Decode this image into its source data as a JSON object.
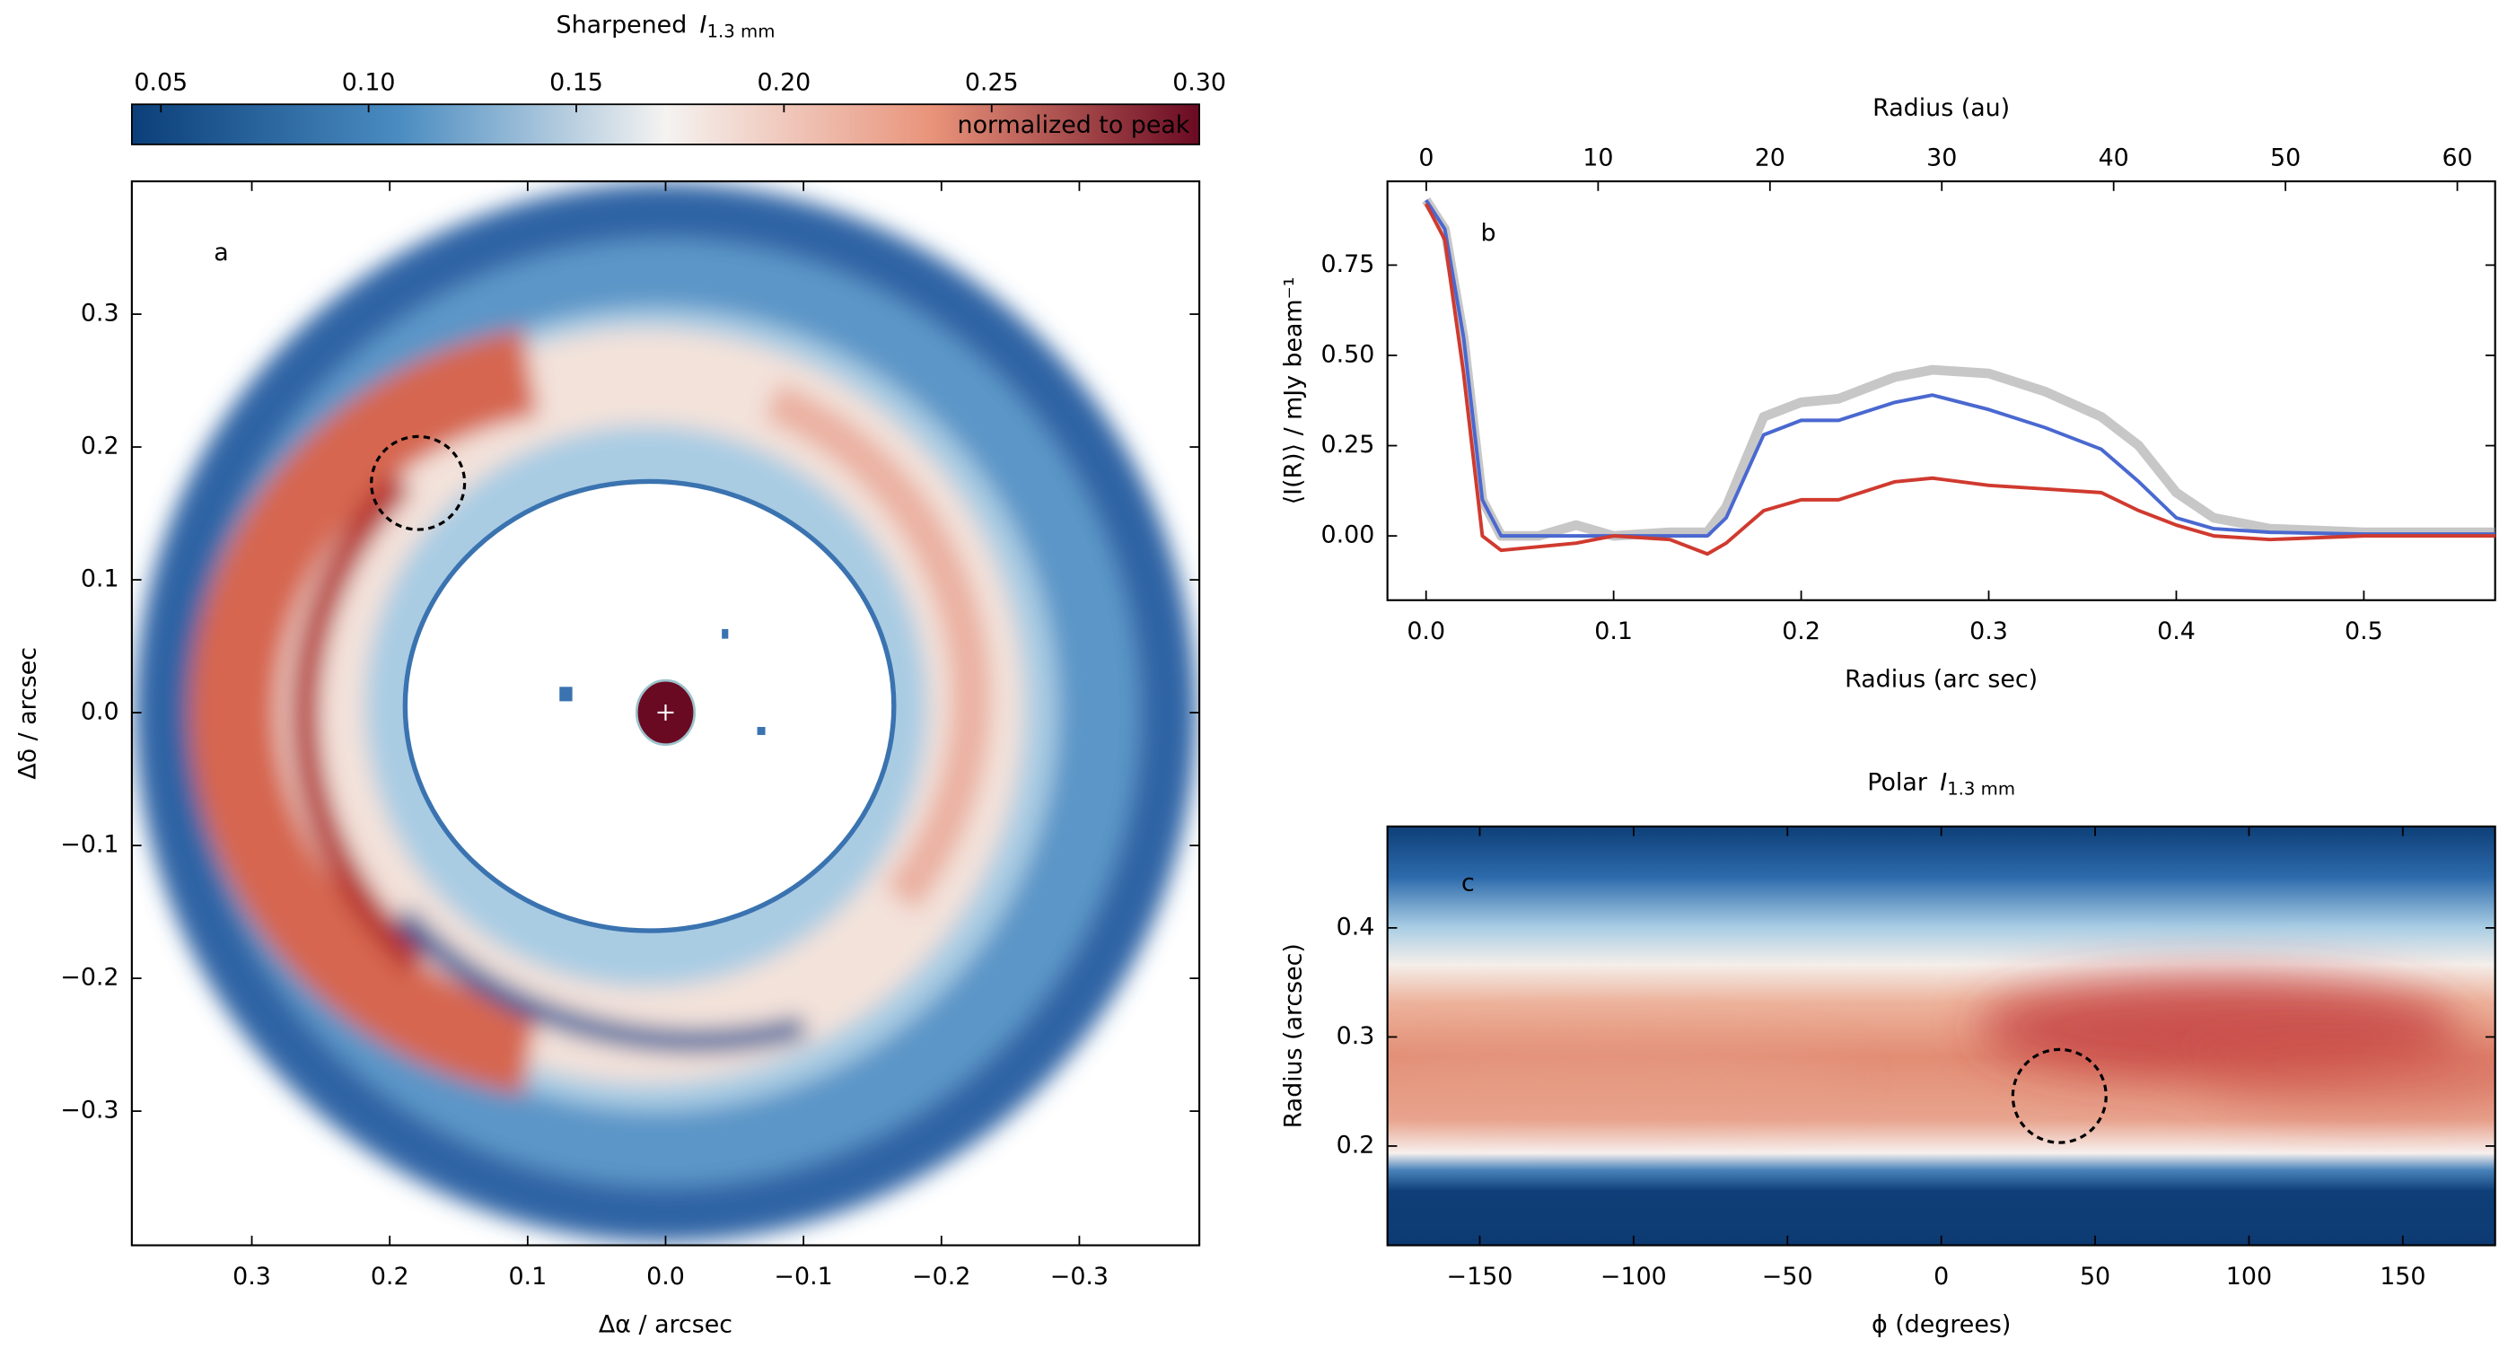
{
  "chart_data": [
    {
      "type": "heatmap",
      "title": "Sharpened",
      "title_symbol": "I",
      "title_subscript": "1.3 mm",
      "annotation": "a",
      "xlabel": "Δα / arcsec",
      "ylabel": "Δδ / arcsec",
      "xlim": [
        0.387,
        -0.387
      ],
      "xticks": [
        0.3,
        0.2,
        0.1,
        {
          "value": 0,
          "label": "0.0"
        },
        {
          "value": -0.1,
          "label": "−0.1"
        },
        {
          "value": -0.2,
          "label": "−0.2"
        },
        {
          "value": -0.3,
          "label": "−0.3"
        }
      ],
      "ylim": [
        -0.401,
        0.4
      ],
      "yticks": [
        {
          "value": -0.3,
          "label": "−0.3"
        },
        {
          "value": -0.2,
          "label": "−0.2"
        },
        {
          "value": -0.1,
          "label": "−0.1"
        },
        {
          "value": 0,
          "label": "0.0"
        },
        0.1,
        0.2,
        0.3
      ],
      "colorbar": {
        "lim": [
          0.043,
          0.3
        ],
        "ticks": [
          0.05,
          {
            "value": 0.1,
            "label": "0.10"
          },
          0.15,
          {
            "value": 0.2,
            "label": "0.20"
          },
          0.25,
          {
            "value": 0.3,
            "label": "0.30"
          }
        ],
        "note": "normalized to peak",
        "colors": [
          "#0b3f7a",
          "#4a8cc1",
          "#f5f3f1",
          "#e9937a",
          "#6a0a22"
        ]
      }
    },
    {
      "type": "line",
      "annotation": "b",
      "xlabel": "Radius (arc sec)",
      "x2label": "Radius (au)",
      "ylabel": "⟨I(R)⟩ / mJy beam⁻¹",
      "x": [
        0,
        0.01,
        0.02,
        0.03,
        0.04,
        0.06,
        0.08,
        0.1,
        0.13,
        0.15,
        0.16,
        0.18,
        0.2,
        0.22,
        0.25,
        0.27,
        0.3,
        0.33,
        0.36,
        0.38,
        0.4,
        0.42,
        0.45,
        0.5,
        0.57
      ],
      "series": [
        {
          "color": "#999999",
          "values": [
            0.93,
            0.85,
            0.55,
            0.1,
            0.0,
            0.0,
            0.03,
            0.0,
            0.01,
            0.01,
            0.08,
            0.33,
            0.37,
            0.38,
            0.44,
            0.46,
            0.45,
            0.4,
            0.33,
            0.25,
            0.12,
            0.05,
            0.02,
            0.01,
            0.01
          ]
        },
        {
          "color": "#4a68d0",
          "values": [
            0.93,
            0.85,
            0.55,
            0.1,
            0.0,
            0.0,
            0.0,
            0.0,
            0.0,
            0.0,
            0.05,
            0.28,
            0.32,
            0.32,
            0.37,
            0.39,
            0.35,
            0.3,
            0.24,
            0.15,
            0.05,
            0.02,
            0.01,
            0.005,
            0.005
          ]
        },
        {
          "color": "#d03a2f",
          "values": [
            0.92,
            0.82,
            0.45,
            0.0,
            -0.04,
            -0.03,
            -0.02,
            0.0,
            -0.01,
            -0.05,
            -0.02,
            0.07,
            0.1,
            0.1,
            0.15,
            0.16,
            0.14,
            0.13,
            0.12,
            0.07,
            0.03,
            0.0,
            -0.01,
            0.0,
            0.0
          ]
        }
      ],
      "xlim": [
        -0.0206,
        0.57
      ],
      "xticks": [
        {
          "value": 0,
          "label": "0.0"
        },
        0.1,
        0.2,
        0.3,
        0.4,
        0.5
      ],
      "x2lim": [
        -2.26,
        62.2
      ],
      "x2ticks": [
        0,
        10,
        20,
        30,
        40,
        50,
        60
      ],
      "ylim": [
        -0.178,
        0.982
      ],
      "yticks": [
        {
          "value": 0,
          "label": "0.00"
        },
        0.25,
        {
          "value": 0.5,
          "label": "0.50"
        },
        0.75
      ]
    },
    {
      "type": "heatmap",
      "title": "Polar",
      "title_symbol": "I",
      "title_subscript": "1.3 mm",
      "annotation": "c",
      "xlabel": "ϕ (degrees)",
      "ylabel": "Radius (arcsec)",
      "xlim": [
        -180,
        180
      ],
      "xticks": [
        {
          "value": -150,
          "label": "−150"
        },
        {
          "value": -100,
          "label": "−100"
        },
        {
          "value": -50,
          "label": "−50"
        },
        0,
        50,
        100,
        150
      ],
      "ylim": [
        0.109,
        0.493
      ],
      "yticks": [
        0.2,
        0.3,
        0.4
      ]
    }
  ]
}
